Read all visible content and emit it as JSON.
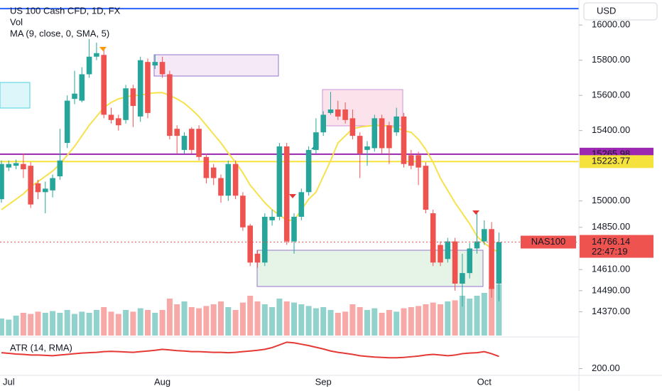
{
  "chart_data": {
    "type": "candlestick",
    "title": "US 100 Cash CFD, 1D, FX",
    "volume_title": "Vol",
    "ma_title": "MA (9, close, 0, SMA, 5)",
    "atr_title": "ATR (14, RMA)",
    "currency": "USD",
    "symbol_label": "NAS100",
    "countdown": "22:47:19",
    "categories": [
      null,
      "Jul",
      null,
      null,
      null,
      null,
      null,
      null,
      null,
      null,
      null,
      null,
      null,
      null,
      null,
      null,
      null,
      null,
      null,
      null,
      null,
      null,
      "Aug",
      null,
      null,
      null,
      null,
      null,
      null,
      null,
      null,
      null,
      null,
      null,
      null,
      null,
      null,
      null,
      null,
      null,
      null,
      null,
      null,
      null,
      "Sep",
      null,
      null,
      null,
      null,
      null,
      null,
      null,
      null,
      null,
      null,
      null,
      null,
      null,
      null,
      null,
      null,
      null,
      null,
      null,
      null,
      null,
      "Oct",
      null,
      null
    ],
    "up_color": "#26a69a",
    "down_color": "#ef5350",
    "candles": {
      "open": [
        15010,
        15190,
        15200,
        15210,
        15200,
        15100,
        15050,
        15060,
        15140,
        15330,
        15580,
        15570,
        15720,
        15820,
        15830,
        15490,
        15470,
        15460,
        15640,
        15480,
        15790,
        15770,
        15790,
        15720,
        15410,
        15290,
        15410,
        15410,
        15250,
        15190,
        15130,
        15030,
        15210,
        15030,
        14860,
        14700,
        14650,
        14890,
        14910,
        15310,
        14770,
        14910,
        15050,
        15290,
        15390,
        15500,
        15520,
        15520,
        15470,
        15370,
        15290,
        15300,
        15470,
        15430,
        15390,
        15480,
        15260,
        15260,
        15200,
        14930,
        14750,
        14670,
        14770,
        14530,
        14590,
        14730,
        14770,
        14840,
        14530
      ],
      "high": [
        15230,
        15230,
        15235,
        15270,
        15220,
        15120,
        15110,
        15150,
        15410,
        15600,
        15740,
        15760,
        15920,
        15900,
        15860,
        15530,
        15490,
        15660,
        15660,
        15820,
        15810,
        15830,
        15820,
        15740,
        15430,
        15390,
        15420,
        15430,
        15270,
        15210,
        15150,
        15230,
        15230,
        15050,
        14870,
        14720,
        14930,
        14950,
        15330,
        15330,
        14930,
        15070,
        15310,
        15470,
        15510,
        15620,
        15570,
        15560,
        15520,
        15390,
        15340,
        15490,
        15490,
        15450,
        15530,
        15500,
        15290,
        15280,
        15220,
        14950,
        14770,
        14790,
        14790,
        14700,
        14760,
        14930,
        14890,
        14880,
        14820
      ],
      "low": [
        14990,
        15170,
        15180,
        15130,
        14960,
        15010,
        14930,
        15020,
        15120,
        15300,
        15550,
        15560,
        15700,
        15800,
        15470,
        15440,
        15400,
        15440,
        15420,
        15450,
        15470,
        15750,
        15700,
        15350,
        15270,
        15270,
        15270,
        15230,
        15100,
        15090,
        14990,
        15000,
        15010,
        14830,
        14630,
        14620,
        14630,
        14860,
        14890,
        14750,
        14700,
        14890,
        15030,
        15270,
        15370,
        15490,
        15460,
        15440,
        15350,
        15130,
        15200,
        15280,
        15270,
        15210,
        15370,
        15190,
        15180,
        15090,
        14930,
        14630,
        14630,
        14650,
        14490,
        14400,
        14560,
        14700,
        14750,
        14450,
        14430
      ],
      "close": [
        15210,
        15210,
        15215,
        15180,
        14980,
        15050,
        15070,
        15130,
        15230,
        15570,
        15610,
        15720,
        15820,
        15840,
        15490,
        15460,
        15430,
        15640,
        15540,
        15800,
        15500,
        15790,
        15720,
        15370,
        15370,
        15370,
        15290,
        15250,
        15130,
        15130,
        15030,
        15210,
        15030,
        14850,
        14650,
        14650,
        14910,
        14910,
        15310,
        14770,
        14910,
        15050,
        15290,
        15390,
        15490,
        15520,
        15480,
        15460,
        15370,
        15270,
        15310,
        15470,
        15300,
        15300,
        15480,
        15210,
        15200,
        15190,
        14950,
        14650,
        14650,
        14770,
        14530,
        14590,
        14730,
        14770,
        14840,
        14500,
        14766.14
      ]
    },
    "ma": {
      "color": "#f7e14d",
      "values": [
        14950,
        14980,
        15010,
        15040,
        15080,
        15110,
        15140,
        15170,
        15210,
        15260,
        15310,
        15370,
        15430,
        15480,
        15530,
        15560,
        15580,
        15590,
        15600,
        15600,
        15610,
        15615,
        15616,
        15600,
        15580,
        15555,
        15520,
        15480,
        15430,
        15380,
        15330,
        15273,
        15220,
        15160,
        15090,
        15040,
        14990,
        14950,
        14920,
        14890,
        14890,
        14950,
        15010,
        15050,
        15140,
        15230,
        15330,
        15370,
        15410,
        15420,
        15425,
        15430,
        15430,
        15425,
        15415,
        15400,
        15390,
        15350,
        15293,
        15220,
        15130,
        15060,
        14990,
        14930,
        14870,
        14800,
        14760,
        14730,
        14707
      ]
    },
    "volume": [
      30,
      28,
      35,
      40,
      38,
      42,
      40,
      43,
      40,
      45,
      38,
      42,
      40,
      45,
      50,
      42,
      38,
      45,
      42,
      48,
      45,
      40,
      45,
      65,
      55,
      60,
      50,
      48,
      52,
      55,
      60,
      50,
      45,
      58,
      70,
      60,
      55,
      50,
      65,
      60,
      58,
      55,
      52,
      48,
      50,
      45,
      40,
      42,
      55,
      50,
      45,
      48,
      40,
      45,
      42,
      48,
      50,
      52,
      55,
      58,
      55,
      60,
      62,
      70,
      65,
      70,
      75,
      85,
      90
    ],
    "volume_lim": [
      0,
      100
    ],
    "atr": {
      "color": "#e53935",
      "values": [
        247,
        245,
        243,
        242,
        240,
        240,
        239,
        238,
        240,
        242,
        244,
        246,
        247,
        248,
        250,
        251,
        250,
        249,
        248,
        250,
        252,
        254,
        257,
        255,
        253,
        252,
        250,
        250,
        249,
        248,
        248,
        247,
        248,
        250,
        252,
        254,
        257,
        262,
        270,
        278,
        276,
        272,
        268,
        263,
        258,
        252,
        248,
        245,
        242,
        238,
        236,
        234,
        233,
        232,
        232,
        233,
        235,
        237,
        240,
        242,
        240,
        238,
        240,
        244,
        246,
        247,
        250,
        244,
        236
      ]
    },
    "atr_ylim": [
      180,
      285
    ],
    "atr_yticks": [
      {
        "value": 200,
        "label": "200.00"
      }
    ],
    "ylim": [
      14235,
      16130
    ],
    "yticks": [
      {
        "value": 16000,
        "label": "16000.00"
      },
      {
        "value": 15800,
        "label": "15800.00"
      },
      {
        "value": 15600,
        "label": "15600.00"
      },
      {
        "value": 15400,
        "label": "15400.00"
      },
      {
        "value": 15000,
        "label": "15000.00"
      },
      {
        "value": 14850,
        "label": "14850.00"
      },
      {
        "value": 14610,
        "label": "14610.00"
      },
      {
        "value": 14490,
        "label": "14490.00"
      },
      {
        "value": 14370,
        "label": "14370.00"
      }
    ],
    "hlines": [
      {
        "value": 16093,
        "color": "#2962ff"
      },
      {
        "value": 15265.98,
        "color": "#9c27b0",
        "text_color": "#ffffff"
      },
      {
        "value": 15223.77,
        "color": "#f5e23c",
        "text_color": "#131722"
      }
    ]
  }
}
